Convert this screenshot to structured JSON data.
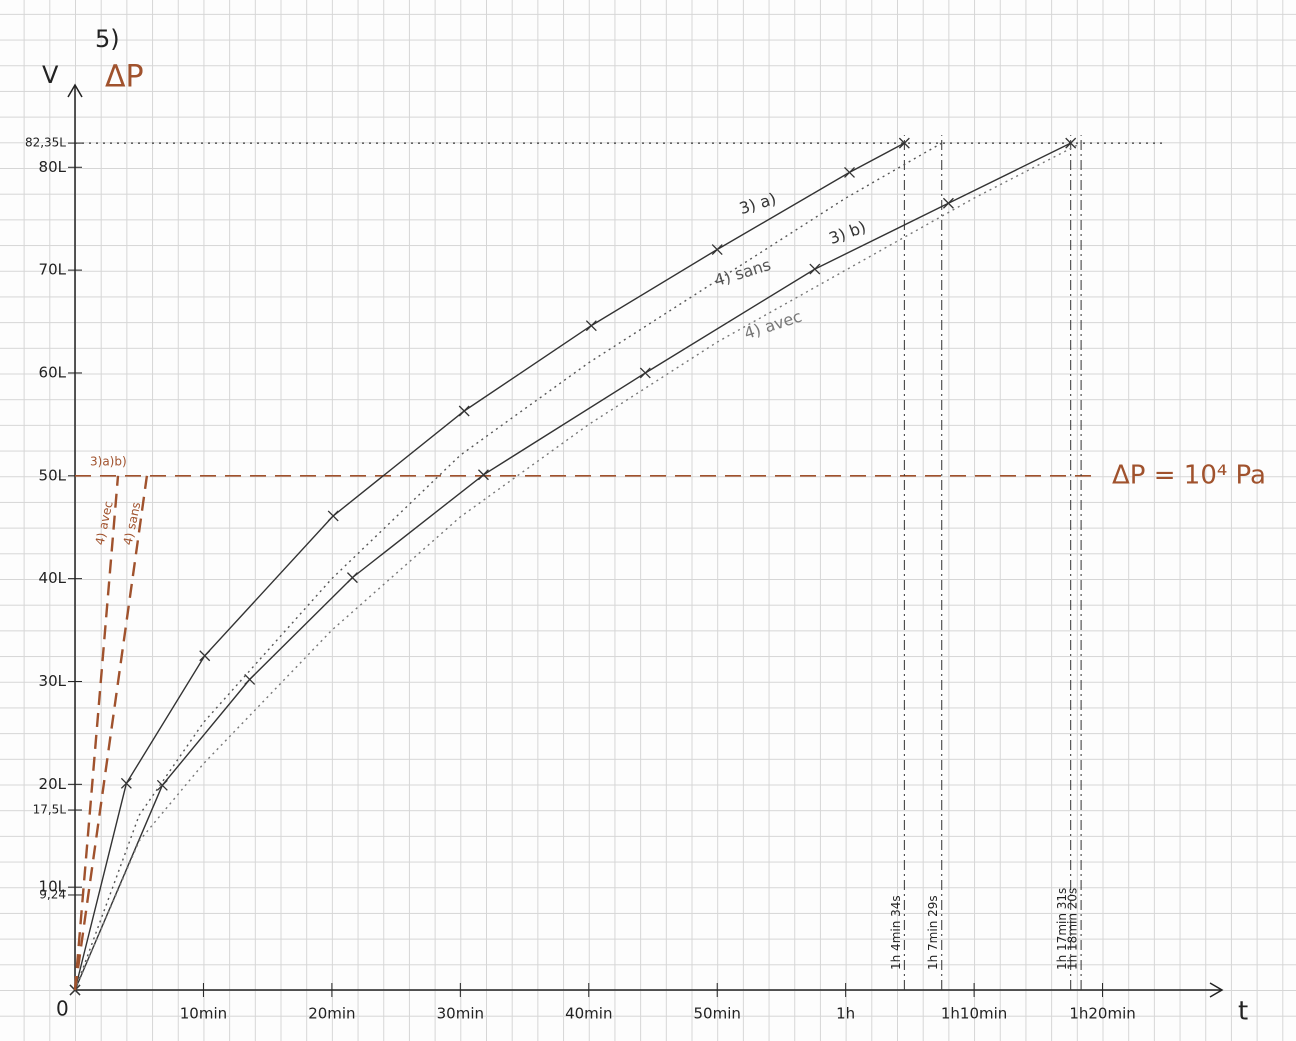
{
  "chart_data": {
    "type": "line",
    "title": "5)",
    "ylabel": "V",
    "y_secondary_label": "ΔP",
    "xlabel": "t",
    "origin_label": "0",
    "xlim": [
      0,
      89.3
    ],
    "ylim": [
      0,
      88
    ],
    "xticks": [
      {
        "value": 10,
        "label": "10min"
      },
      {
        "value": 20,
        "label": "20min"
      },
      {
        "value": 30,
        "label": "30min"
      },
      {
        "value": 40,
        "label": "40min"
      },
      {
        "value": 50,
        "label": "50min"
      },
      {
        "value": 60,
        "label": "1h"
      },
      {
        "value": 70,
        "label": "1h10min"
      },
      {
        "value": 80,
        "label": "1h20min"
      }
    ],
    "yticks": [
      {
        "value": 9.24,
        "label": "9,24"
      },
      {
        "value": 10,
        "label": "10L"
      },
      {
        "value": 17.5,
        "label": "17,5L"
      },
      {
        "value": 20,
        "label": "20L"
      },
      {
        "value": 30,
        "label": "30L"
      },
      {
        "value": 40,
        "label": "40L"
      },
      {
        "value": 50,
        "label": "50L"
      },
      {
        "value": 60,
        "label": "60L"
      },
      {
        "value": 70,
        "label": "70L"
      },
      {
        "value": 80,
        "label": "80L"
      },
      {
        "value": 82.35,
        "label": "82,35L"
      }
    ],
    "series": [
      {
        "name": "3) a)",
        "color": "#333333",
        "style": "solid",
        "markers": true,
        "x": [
          0,
          4,
          10.1,
          20.1,
          30.3,
          40.2,
          50,
          60.3,
          64.57
        ],
        "values": [
          0,
          20.1,
          32.5,
          46.1,
          56.3,
          64.6,
          72,
          79.5,
          82.35
        ]
      },
      {
        "name": "3) b)",
        "color": "#333333",
        "style": "solid",
        "markers": true,
        "x": [
          0,
          6.8,
          13.6,
          21.6,
          31.8,
          44.4,
          57.6,
          68,
          77.52
        ],
        "values": [
          0,
          19.9,
          30.2,
          40.1,
          50.1,
          60,
          70.1,
          76.5,
          82.35
        ]
      },
      {
        "name": "4) sans",
        "color": "#555555",
        "style": "dotted",
        "markers": false,
        "x": [
          0,
          5,
          10,
          20,
          30,
          40,
          50,
          60,
          67.48
        ],
        "values": [
          0,
          17,
          26,
          40,
          52,
          61,
          69,
          77,
          82.35
        ]
      },
      {
        "name": "4) avec",
        "color": "#777777",
        "style": "dotted",
        "markers": false,
        "x": [
          0,
          5,
          10,
          20,
          30,
          40,
          50,
          60,
          70,
          78.33
        ],
        "values": [
          0,
          14.5,
          22,
          35,
          46,
          55,
          63,
          70,
          77,
          82.35
        ]
      },
      {
        "name": "4) avec",
        "color": "#a0522d",
        "style": "dashed",
        "markers": false,
        "x": [
          0,
          3.35
        ],
        "values": [
          0,
          50
        ]
      },
      {
        "name": "4) sans",
        "color": "#a0522d",
        "style": "dashed",
        "markers": false,
        "x": [
          0,
          5.6
        ],
        "values": [
          0,
          50
        ]
      }
    ],
    "ratio_label": "3)a)b)",
    "reference_lines": [
      {
        "value": 50,
        "label": "ΔP = 10⁴ Pa",
        "color": "#a0522d"
      },
      {
        "value": 82.35,
        "color": "#333333"
      }
    ],
    "events": [
      {
        "value": 64.57,
        "label": "1h 4min 34s"
      },
      {
        "value": 67.48,
        "label": "1h 7min 29s"
      },
      {
        "value": 77.52,
        "label": "1h 17min 31s"
      },
      {
        "value": 78.33,
        "label": "1h 18min 20s"
      }
    ]
  }
}
